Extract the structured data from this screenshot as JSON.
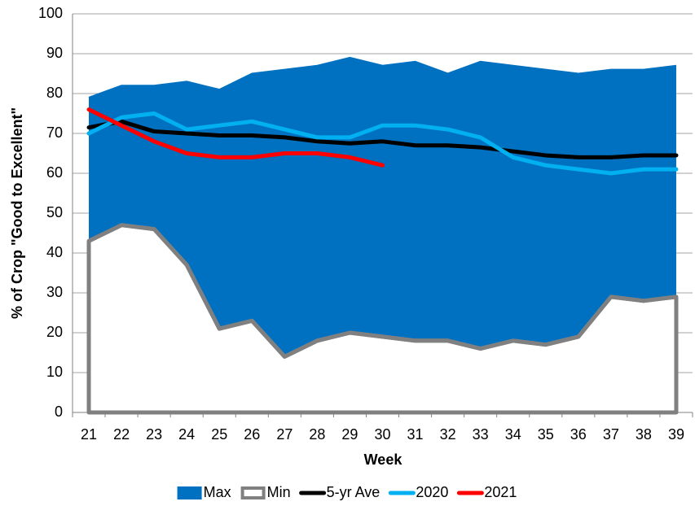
{
  "chart_data": {
    "type": "line",
    "ylabel": "% of Crop \"Good to Excellent\"",
    "xlabel": "Week",
    "categories": [
      "21",
      "22",
      "23",
      "24",
      "25",
      "26",
      "27",
      "28",
      "29",
      "30",
      "31",
      "32",
      "33",
      "34",
      "35",
      "36",
      "37",
      "38",
      "39"
    ],
    "ylim": [
      0,
      100
    ],
    "yticks": [
      0,
      10,
      20,
      30,
      40,
      50,
      60,
      70,
      80,
      90,
      100
    ],
    "grid": true,
    "legend": "bottom",
    "series": [
      {
        "name": "Max",
        "color": "#0070c0",
        "style": "area",
        "values": [
          79,
          82,
          82,
          83,
          81,
          85,
          86,
          87,
          89,
          87,
          88,
          85,
          88,
          87,
          86,
          85,
          86,
          86,
          87
        ]
      },
      {
        "name": "Min",
        "color": "#808080",
        "style": "floor",
        "values": [
          43,
          47,
          46,
          37,
          21,
          23,
          14,
          18,
          20,
          19,
          18,
          18,
          16,
          18,
          17,
          19,
          29,
          28,
          29
        ]
      },
      {
        "name": "5-yr Ave",
        "color": "#000000",
        "style": "line",
        "values": [
          71.5,
          73,
          70.5,
          70,
          69.5,
          69.5,
          69,
          68,
          67.5,
          68,
          67,
          67,
          66.5,
          65.5,
          64.5,
          64,
          64,
          64.5,
          64.5
        ]
      },
      {
        "name": "2020",
        "color": "#00b0f0",
        "style": "line",
        "values": [
          70,
          74,
          75,
          71,
          72,
          73,
          71,
          69,
          69,
          72,
          72,
          71,
          69,
          64,
          62,
          61,
          60,
          61,
          61
        ]
      },
      {
        "name": "2021",
        "color": "#ff0000",
        "style": "line",
        "values": [
          76,
          72,
          68,
          65,
          64,
          64,
          65,
          65,
          64,
          62,
          null,
          null,
          null,
          null,
          null,
          null,
          null,
          null,
          null
        ]
      }
    ]
  }
}
